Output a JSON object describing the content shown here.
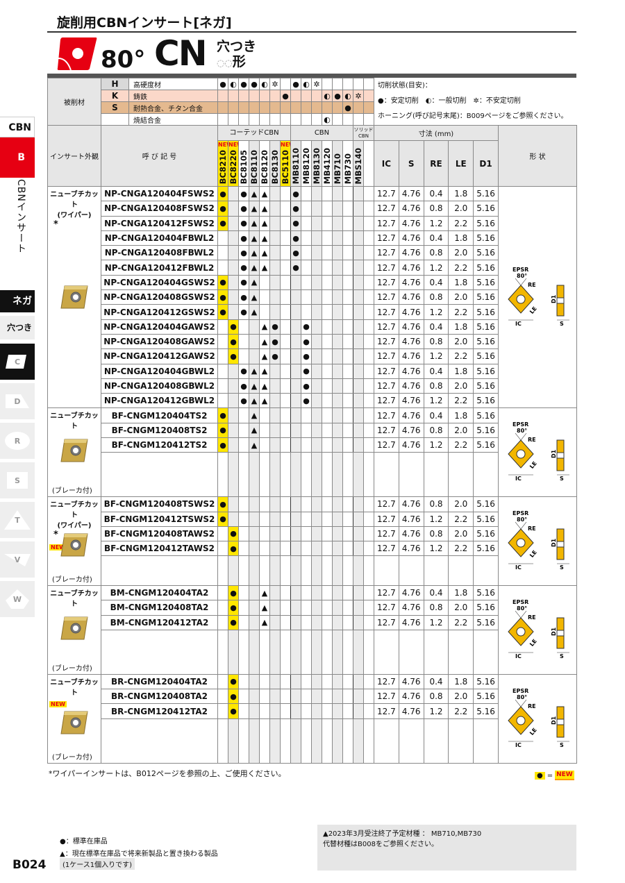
{
  "header": {
    "title": "旋削用CBNインサート[ネガ]",
    "angle": "80°",
    "shape_code": "CN",
    "hole_label": "穴つき",
    "form_label": "形"
  },
  "sidebar": {
    "cbn": "CBN",
    "b": "B",
    "vertical": "CBNインサート",
    "nega": "ネガ",
    "hole": "穴つき",
    "shapes": [
      "C",
      "D",
      "R",
      "S",
      "T",
      "V",
      "W"
    ],
    "active_shape": "C"
  },
  "materials": {
    "label": "被削材",
    "rows": [
      {
        "code": "H",
        "name": "高硬度材",
        "marks": [
          "●",
          "◐",
          "●",
          "●",
          "◐",
          "✲",
          "",
          "●",
          "◐",
          "✲",
          "",
          "",
          "",
          "",
          ""
        ]
      },
      {
        "code": "K",
        "name": "鋳鉄",
        "marks": [
          "",
          "",
          "",
          "",
          "",
          "",
          "●",
          "",
          "",
          "",
          "◐",
          "●",
          "◐",
          "✲",
          ""
        ]
      },
      {
        "code": "S",
        "name": "耐熱合金、チタン合金",
        "marks": [
          "",
          "",
          "",
          "",
          "",
          "",
          "",
          "",
          "",
          "",
          "",
          "",
          "●",
          "",
          ""
        ]
      },
      {
        "code": "",
        "name": "焼結合金",
        "marks": [
          "",
          "",
          "",
          "",
          "",
          "",
          "",
          "",
          "",
          "",
          "◐",
          "",
          "",
          "",
          ""
        ]
      }
    ]
  },
  "legend": {
    "title": "切削状態(目安)：",
    "items": "●：安定切削　◐：一般切削　✲：不安定切削",
    "honing": "ホーニング(呼び記号末尾)：B009ページをご参照ください。"
  },
  "columns": {
    "appearance": "インサート外観",
    "designation": "呼 び 記 号",
    "group_coated": "コーテッドCBN",
    "group_cbn": "CBN",
    "group_solid": "ソリッドCBN",
    "dims": "寸法 (mm)",
    "dim_names": [
      "IC",
      "S",
      "RE",
      "LE",
      "D1"
    ],
    "shape": "形 状",
    "new_label": "NEW",
    "grades": [
      "BC8210",
      "BC8220",
      "BC8105",
      "BC8110",
      "BC8120",
      "BC8130",
      "BC5110",
      "MB8110",
      "MB8120",
      "MB8130",
      "MB4120",
      "MB710",
      "MB730",
      "MBS140",
      ""
    ],
    "new_grades": [
      "BC8210",
      "BC8220",
      "BC5110"
    ]
  },
  "shape_labels": {
    "epsr": "EPSR",
    "angle": "80°",
    "re": "RE",
    "le": "LE",
    "ic": "IC",
    "d1": "D1",
    "s": "S"
  },
  "groups": [
    {
      "label": "ニューブチカット",
      "sub": "(ワイパー)",
      "mark": "*",
      "new": false,
      "breaker": "",
      "separators": [
        3,
        6,
        9,
        12
      ],
      "rows": [
        {
          "code": "NP-CNGA120404FSWS2",
          "marks": {
            "BC8210": "●",
            "BC8105": "●",
            "BC8110": "▲",
            "BC8120": "▲",
            "MB8110": "●"
          },
          "dims": [
            "12.7",
            "4.76",
            "0.4",
            "1.8",
            "5.16"
          ]
        },
        {
          "code": "NP-CNGA120408FSWS2",
          "marks": {
            "BC8210": "●",
            "BC8105": "●",
            "BC8110": "▲",
            "BC8120": "▲",
            "MB8110": "●"
          },
          "dims": [
            "12.7",
            "4.76",
            "0.8",
            "2.0",
            "5.16"
          ]
        },
        {
          "code": "NP-CNGA120412FSWS2",
          "marks": {
            "BC8210": "●",
            "BC8105": "●",
            "BC8110": "▲",
            "BC8120": "▲",
            "MB8110": "●"
          },
          "dims": [
            "12.7",
            "4.76",
            "1.2",
            "2.2",
            "5.16"
          ]
        },
        {
          "code": "NP-CNGA120404FBWL2",
          "marks": {
            "BC8105": "●",
            "BC8110": "▲",
            "BC8120": "▲",
            "MB8110": "●"
          },
          "dims": [
            "12.7",
            "4.76",
            "0.4",
            "1.8",
            "5.16"
          ]
        },
        {
          "code": "NP-CNGA120408FBWL2",
          "marks": {
            "BC8105": "●",
            "BC8110": "▲",
            "BC8120": "▲",
            "MB8110": "●"
          },
          "dims": [
            "12.7",
            "4.76",
            "0.8",
            "2.0",
            "5.16"
          ]
        },
        {
          "code": "NP-CNGA120412FBWL2",
          "marks": {
            "BC8105": "●",
            "BC8110": "▲",
            "BC8120": "▲",
            "MB8110": "●"
          },
          "dims": [
            "12.7",
            "4.76",
            "1.2",
            "2.2",
            "5.16"
          ]
        },
        {
          "code": "NP-CNGA120404GSWS2",
          "marks": {
            "BC8210": "●",
            "BC8105": "●",
            "BC8110": "▲"
          },
          "dims": [
            "12.7",
            "4.76",
            "0.4",
            "1.8",
            "5.16"
          ]
        },
        {
          "code": "NP-CNGA120408GSWS2",
          "marks": {
            "BC8210": "●",
            "BC8105": "●",
            "BC8110": "▲"
          },
          "dims": [
            "12.7",
            "4.76",
            "0.8",
            "2.0",
            "5.16"
          ]
        },
        {
          "code": "NP-CNGA120412GSWS2",
          "marks": {
            "BC8210": "●",
            "BC8105": "●",
            "BC8110": "▲"
          },
          "dims": [
            "12.7",
            "4.76",
            "1.2",
            "2.2",
            "5.16"
          ]
        },
        {
          "code": "NP-CNGA120404GAWS2",
          "marks": {
            "BC8220": "●",
            "BC8120": "▲",
            "BC8130": "●",
            "MB8120": "●"
          },
          "dims": [
            "12.7",
            "4.76",
            "0.4",
            "1.8",
            "5.16"
          ]
        },
        {
          "code": "NP-CNGA120408GAWS2",
          "marks": {
            "BC8220": "●",
            "BC8120": "▲",
            "BC8130": "●",
            "MB8120": "●"
          },
          "dims": [
            "12.7",
            "4.76",
            "0.8",
            "2.0",
            "5.16"
          ]
        },
        {
          "code": "NP-CNGA120412GAWS2",
          "marks": {
            "BC8220": "●",
            "BC8120": "▲",
            "BC8130": "●",
            "MB8120": "●"
          },
          "dims": [
            "12.7",
            "4.76",
            "1.2",
            "2.2",
            "5.16"
          ]
        },
        {
          "code": "NP-CNGA120404GBWL2",
          "marks": {
            "BC8105": "●",
            "BC8110": "▲",
            "BC8120": "▲",
            "MB8120": "●"
          },
          "dims": [
            "12.7",
            "4.76",
            "0.4",
            "1.8",
            "5.16"
          ]
        },
        {
          "code": "NP-CNGA120408GBWL2",
          "marks": {
            "BC8105": "●",
            "BC8110": "▲",
            "BC8120": "▲",
            "MB8120": "●"
          },
          "dims": [
            "12.7",
            "4.76",
            "0.8",
            "2.0",
            "5.16"
          ]
        },
        {
          "code": "NP-CNGA120412GBWL2",
          "marks": {
            "BC8105": "●",
            "BC8110": "▲",
            "BC8120": "▲",
            "MB8120": "●"
          },
          "dims": [
            "12.7",
            "4.76",
            "1.2",
            "2.2",
            "5.16"
          ]
        }
      ]
    },
    {
      "label": "ニューブチカット",
      "sub": "",
      "mark": "",
      "new": false,
      "breaker": "(ブレーカ付)",
      "separators": [],
      "filler": 3,
      "rows": [
        {
          "code": "BF-CNGM120404TS2",
          "marks": {
            "BC8210": "●",
            "BC8110": "▲"
          },
          "dims": [
            "12.7",
            "4.76",
            "0.4",
            "1.8",
            "5.16"
          ]
        },
        {
          "code": "BF-CNGM120408TS2",
          "marks": {
            "BC8210": "●",
            "BC8110": "▲"
          },
          "dims": [
            "12.7",
            "4.76",
            "0.8",
            "2.0",
            "5.16"
          ]
        },
        {
          "code": "BF-CNGM120412TS2",
          "marks": {
            "BC8210": "●",
            "BC8110": "▲"
          },
          "dims": [
            "12.7",
            "4.76",
            "1.2",
            "2.2",
            "5.16"
          ]
        }
      ]
    },
    {
      "label": "ニューブチカット",
      "sub": "(ワイパー)",
      "mark": "*",
      "new": true,
      "breaker": "(ブレーカ付)",
      "separators": [
        2
      ],
      "filler": 2,
      "rows": [
        {
          "code": "BF-CNGM120408TSWS2",
          "marks": {
            "BC8210": "●"
          },
          "dims": [
            "12.7",
            "4.76",
            "0.8",
            "2.0",
            "5.16"
          ]
        },
        {
          "code": "BF-CNGM120412TSWS2",
          "marks": {
            "BC8210": "●"
          },
          "dims": [
            "12.7",
            "4.76",
            "1.2",
            "2.2",
            "5.16"
          ]
        },
        {
          "code": "BF-CNGM120408TAWS2",
          "marks": {
            "BC8220": "●"
          },
          "dims": [
            "12.7",
            "4.76",
            "0.8",
            "2.0",
            "5.16"
          ]
        },
        {
          "code": "BF-CNGM120412TAWS2",
          "marks": {
            "BC8220": "●"
          },
          "dims": [
            "12.7",
            "4.76",
            "1.2",
            "2.2",
            "5.16"
          ]
        }
      ]
    },
    {
      "label": "ニューブチカット",
      "sub": "",
      "mark": "",
      "new": false,
      "breaker": "(ブレーカ付)",
      "separators": [],
      "filler": 3,
      "rows": [
        {
          "code": "BM-CNGM120404TA2",
          "marks": {
            "BC8220": "●",
            "BC8120": "▲"
          },
          "dims": [
            "12.7",
            "4.76",
            "0.4",
            "1.8",
            "5.16"
          ]
        },
        {
          "code": "BM-CNGM120408TA2",
          "marks": {
            "BC8220": "●",
            "BC8120": "▲"
          },
          "dims": [
            "12.7",
            "4.76",
            "0.8",
            "2.0",
            "5.16"
          ]
        },
        {
          "code": "BM-CNGM120412TA2",
          "marks": {
            "BC8220": "●",
            "BC8120": "▲"
          },
          "dims": [
            "12.7",
            "4.76",
            "1.2",
            "2.2",
            "5.16"
          ]
        }
      ]
    },
    {
      "label": "ニューブチカット",
      "sub": "",
      "mark": "",
      "new": true,
      "breaker": "(ブレーカ付)",
      "separators": [],
      "filler": 3,
      "rows": [
        {
          "code": "BR-CNGM120404TA2",
          "marks": {
            "BC8220": "●"
          },
          "dims": [
            "12.7",
            "4.76",
            "0.4",
            "1.8",
            "5.16"
          ]
        },
        {
          "code": "BR-CNGM120408TA2",
          "marks": {
            "BC8220": "●"
          },
          "dims": [
            "12.7",
            "4.76",
            "0.8",
            "2.0",
            "5.16"
          ]
        },
        {
          "code": "BR-CNGM120412TA2",
          "marks": {
            "BC8220": "●"
          },
          "dims": [
            "12.7",
            "4.76",
            "1.2",
            "2.2",
            "5.16"
          ]
        }
      ]
    }
  ],
  "footer": {
    "wiper_note": "*ワイパーインサートは、B012ページを参照の上、ご使用ください。",
    "new_legend_eq": "=",
    "new_legend": "NEW",
    "stock": "●：標準在庫品",
    "replace": "▲：現在標準在庫品で将来新製品と置き換わる製品",
    "case": "(1ケース1個入りです)",
    "page": "B024",
    "end_note": "▲2023年3月受注終了予定材種 ： MB710,MB730",
    "alt_note": "代替材種はB008をご参照ください。"
  },
  "colors": {
    "red": "#e60012",
    "new_yellow": "#ffe600",
    "insert_gold": "#c9a646",
    "k_row": "#fbd8c9",
    "s_row": "#e4b98f"
  }
}
